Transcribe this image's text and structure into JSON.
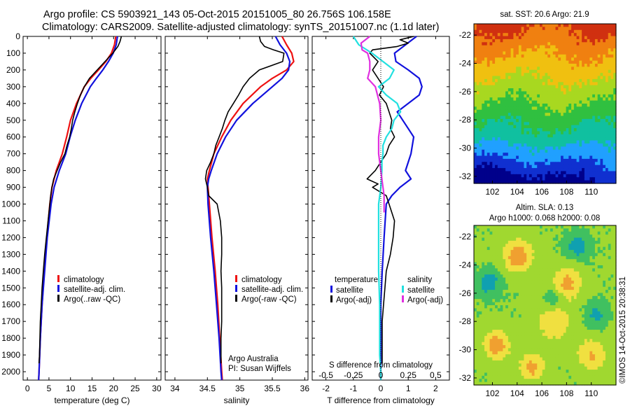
{
  "header": {
    "title_line1": "Argo profile: CS 5903921_143 05-Oct-2015 20151005_80 26.756S 106.158E",
    "title_line2": "Climatology: CARS2009. Satellite-adjusted climatology: synTS_20151007.nc (1.1d later)"
  },
  "colors": {
    "climatology": "#ee1111",
    "satellite": "#1111dd",
    "argo": "#000000",
    "sal_satellite": "#22e0e0",
    "sal_argo": "#e030e0"
  },
  "chart_data": [
    {
      "id": "temperature",
      "type": "line",
      "xlabel": "temperature (deg C)",
      "ylabel": "",
      "xlim": [
        -1,
        31
      ],
      "ylim": [
        0,
        2050
      ],
      "y_inverted": true,
      "xticks": [
        0,
        5,
        10,
        15,
        20,
        25,
        30
      ],
      "yticks": [
        0,
        100,
        200,
        300,
        400,
        500,
        600,
        700,
        800,
        900,
        1000,
        1100,
        1200,
        1300,
        1400,
        1500,
        1600,
        1700,
        1800,
        1900,
        2000
      ],
      "legend": {
        "placement": "bottom-center",
        "entries": [
          {
            "label": "climatology",
            "color": "#ee1111"
          },
          {
            "label": "satellite-adj. clim.",
            "color": "#1111dd"
          },
          {
            "label": "Argo(..raw -QC)",
            "color": "#000000"
          }
        ]
      },
      "series": [
        {
          "color": "#ee1111",
          "depth": [
            0,
            50,
            100,
            150,
            200,
            250,
            300,
            400,
            500,
            600,
            700,
            800,
            900,
            1000,
            1200,
            1400,
            1600,
            1800,
            2000,
            2050
          ],
          "values": [
            20.5,
            20.2,
            19.5,
            18.2,
            16.5,
            14.7,
            13.2,
            11.4,
            10.0,
            9.1,
            8.1,
            6.7,
            5.7,
            5.2,
            4.5,
            3.9,
            3.4,
            3.0,
            2.7,
            2.6
          ]
        },
        {
          "color": "#1111dd",
          "depth": [
            0,
            50,
            100,
            150,
            200,
            250,
            300,
            400,
            500,
            600,
            700,
            800,
            900,
            1000,
            1200,
            1400,
            1600,
            1800,
            2000,
            2050
          ],
          "values": [
            20.9,
            20.6,
            19.9,
            18.8,
            17.5,
            16.0,
            14.6,
            12.6,
            11.1,
            9.9,
            8.9,
            7.4,
            6.2,
            5.5,
            4.6,
            4.0,
            3.4,
            3.0,
            2.7,
            2.6
          ]
        },
        {
          "color": "#000000",
          "depth": [
            0,
            30,
            60,
            100,
            150,
            200,
            250,
            300,
            350,
            400,
            450,
            500,
            550,
            600,
            650,
            700,
            750,
            800,
            850,
            900,
            950,
            1000,
            1100,
            1200,
            1300,
            1400,
            1500,
            1600,
            1700,
            1800,
            1900,
            1950
          ],
          "values": [
            21.8,
            21.5,
            21.0,
            19.8,
            18.0,
            16.2,
            14.4,
            13.2,
            12.3,
            11.6,
            11.0,
            10.5,
            10.2,
            9.8,
            9.2,
            8.7,
            7.7,
            6.9,
            6.1,
            5.7,
            5.4,
            5.2,
            4.8,
            4.4,
            4.0,
            3.7,
            3.4,
            3.2,
            3.0,
            2.9,
            2.8,
            2.7
          ]
        }
      ]
    },
    {
      "id": "salinity",
      "type": "line",
      "xlabel": "salinity",
      "ylabel": "",
      "xlim": [
        33.85,
        36.05
      ],
      "ylim": [
        0,
        2050
      ],
      "y_inverted": true,
      "xticks": [
        34,
        34.5,
        35,
        35.5,
        36
      ],
      "legend": {
        "placement": "bottom-right",
        "entries": [
          {
            "label": "climatology",
            "color": "#ee1111"
          },
          {
            "label": "satellite-adj. clim.",
            "color": "#1111dd"
          },
          {
            "label": "Argo(-raw -QC)",
            "color": "#000000"
          }
        ]
      },
      "annotation_lines": [
        "Argo Australia",
        "PI: Susan Wijffels"
      ],
      "series": [
        {
          "color": "#ee1111",
          "depth": [
            0,
            50,
            100,
            150,
            200,
            250,
            300,
            400,
            500,
            600,
            700,
            800,
            850,
            900,
            1000,
            1200,
            1400,
            1600,
            1800,
            2000,
            2050
          ],
          "values": [
            35.65,
            35.72,
            35.8,
            35.83,
            35.72,
            35.5,
            35.32,
            35.05,
            34.86,
            34.72,
            34.6,
            34.53,
            34.5,
            34.51,
            34.53,
            34.57,
            34.62,
            34.66,
            34.69,
            34.72,
            34.73
          ]
        },
        {
          "color": "#1111dd",
          "depth": [
            0,
            50,
            100,
            150,
            200,
            250,
            300,
            400,
            500,
            600,
            700,
            800,
            850,
            900,
            1000,
            1200,
            1400,
            1600,
            1800,
            2000,
            2050
          ],
          "values": [
            35.55,
            35.62,
            35.72,
            35.77,
            35.75,
            35.65,
            35.5,
            35.2,
            34.95,
            34.78,
            34.65,
            34.56,
            34.52,
            34.5,
            34.51,
            34.55,
            34.6,
            34.64,
            34.68,
            34.71,
            34.72
          ]
        },
        {
          "color": "#000000",
          "depth": [
            0,
            30,
            60,
            80,
            100,
            150,
            200,
            250,
            300,
            350,
            400,
            450,
            500,
            550,
            600,
            650,
            700,
            750,
            800,
            850,
            900,
            950,
            1000,
            1100,
            1200,
            1300,
            1400,
            1500,
            1600,
            1700,
            1800,
            1900,
            1950
          ],
          "values": [
            35.3,
            35.32,
            35.38,
            35.52,
            35.68,
            35.66,
            35.3,
            35.15,
            35.05,
            34.98,
            34.9,
            34.82,
            34.77,
            34.73,
            34.68,
            34.63,
            34.6,
            34.55,
            34.49,
            34.47,
            34.5,
            34.52,
            34.65,
            34.7,
            34.72,
            34.72,
            34.71,
            34.72,
            34.72,
            34.72,
            34.71,
            34.71,
            34.71
          ]
        }
      ]
    },
    {
      "id": "difference",
      "type": "line",
      "xlabel": "T difference from climatology",
      "x2label": "S difference from climatology",
      "xlim": [
        -2.5,
        2.5
      ],
      "ylim": [
        0,
        2050
      ],
      "y_inverted": true,
      "xticks": [
        -2,
        -1,
        0,
        1,
        2
      ],
      "x2ticks": [
        -0.5,
        -0.25,
        0,
        0.25,
        0.5
      ],
      "x2tick_labels": [
        "-0.5",
        "-0.25",
        "0",
        "0.25",
        "0.5"
      ],
      "legend": {
        "temperature_title": "temperature",
        "salinity_title": "salinity",
        "entries": [
          {
            "label": "satellite",
            "color": "#1111dd",
            "group": "temperature"
          },
          {
            "label": "Argo(-adj)",
            "color": "#000000",
            "group": "temperature"
          },
          {
            "label": "satellite",
            "color": "#22e0e0",
            "group": "salinity"
          },
          {
            "label": "Argo(-adj)",
            "color": "#e030e0",
            "group": "salinity"
          }
        ]
      },
      "series": [
        {
          "name": "temperature satellite",
          "color": "#1111dd",
          "axis": "T",
          "depth": [
            0,
            50,
            100,
            150,
            200,
            250,
            300,
            350,
            400,
            450,
            500,
            550,
            600,
            700,
            800,
            850,
            900,
            950,
            1000,
            1200,
            1400,
            1600,
            1800,
            2000,
            2050
          ],
          "values": [
            1.3,
            0.9,
            0.5,
            0.55,
            1.0,
            1.4,
            1.5,
            1.4,
            1.0,
            0.6,
            0.8,
            1.0,
            1.2,
            1.1,
            0.9,
            1.1,
            0.7,
            0.4,
            0.2,
            0.12,
            0.05,
            0.0,
            0.0,
            0.0,
            0.0
          ]
        },
        {
          "name": "temperature argo",
          "color": "#000000",
          "axis": "T",
          "depth": [
            0,
            20,
            40,
            60,
            80,
            100,
            150,
            200,
            250,
            300,
            350,
            400,
            450,
            500,
            550,
            600,
            650,
            700,
            750,
            800,
            850,
            880,
            900,
            950,
            1000,
            1100,
            1200,
            1300,
            1400,
            1500,
            1600,
            1700,
            1800,
            1900,
            1950
          ],
          "values": [
            1.2,
            0.7,
            1.0,
            0.6,
            -0.3,
            -0.4,
            -0.1,
            -0.3,
            -0.1,
            0.1,
            -0.05,
            0.2,
            0.3,
            0.4,
            0.35,
            0.5,
            0.3,
            0.2,
            0.0,
            -0.2,
            -0.5,
            -0.1,
            -0.3,
            0.2,
            0.3,
            0.5,
            0.45,
            0.35,
            0.2,
            0.15,
            0.1,
            0.05,
            0.05,
            0.05,
            0.05
          ]
        },
        {
          "name": "salinity satellite",
          "color": "#22e0e0",
          "axis": "S",
          "depth": [
            0,
            50,
            100,
            150,
            200,
            250,
            300,
            350,
            400,
            450,
            500,
            550,
            600,
            650,
            700,
            750,
            800,
            900,
            1000,
            1200,
            1400,
            1600,
            1800,
            1900,
            2000,
            2050
          ],
          "values": [
            -0.25,
            -0.2,
            -0.08,
            0.02,
            0.12,
            0.08,
            -0.02,
            0.05,
            0.15,
            0.18,
            0.12,
            0.1,
            0.05,
            0.02,
            0.02,
            0.01,
            0.01,
            0.0,
            -0.02,
            -0.02,
            -0.02,
            -0.01,
            -0.01,
            -0.01,
            0.0,
            0.0
          ]
        },
        {
          "name": "salinity argo",
          "color": "#e030e0",
          "axis": "S",
          "depth": [
            0,
            40,
            80,
            100,
            150,
            200,
            250,
            300,
            350,
            400,
            500,
            600,
            700,
            800,
            900,
            950,
            1000,
            1050
          ],
          "values": [
            -0.1,
            -0.18,
            -0.17,
            -0.12,
            -0.1,
            -0.1,
            -0.12,
            -0.05,
            -0.03,
            -0.01,
            0.0,
            -0.02,
            -0.02,
            0.0,
            0.02,
            0.03,
            0.03,
            0.03
          ]
        }
      ]
    },
    {
      "id": "sst-map",
      "type": "heatmap",
      "title": "sat. SST: 20.6 Argo: 21.9",
      "xlim": [
        100.5,
        112
      ],
      "ylim": [
        -32.5,
        -21.2
      ],
      "xticks": [
        102,
        104,
        106,
        108,
        110
      ],
      "yticks": [
        -22,
        -24,
        -26,
        -28,
        -30,
        -32
      ],
      "colormap": [
        "#00008b",
        "#1030d0",
        "#20a0ff",
        "#10c0a0",
        "#30c040",
        "#a8d820",
        "#f0c010",
        "#f08010",
        "#d03010"
      ]
    },
    {
      "id": "sla-map",
      "type": "heatmap",
      "title_line1": "Altim. SLA: 0.13",
      "title_line2": "Argo h1000: 0.068 h2000: 0.08",
      "xlim": [
        100.5,
        112
      ],
      "ylim": [
        -32.5,
        -21.2
      ],
      "xticks": [
        102,
        104,
        106,
        108,
        110
      ],
      "yticks": [
        -22,
        -24,
        -26,
        -28,
        -30,
        -32
      ],
      "colormap": [
        "#10a0b0",
        "#40c060",
        "#a0d830",
        "#f0e040",
        "#f0a030"
      ]
    }
  ],
  "footer": {
    "side_stamp": "©IMOS 14-Oct-2015 20:38:31"
  }
}
